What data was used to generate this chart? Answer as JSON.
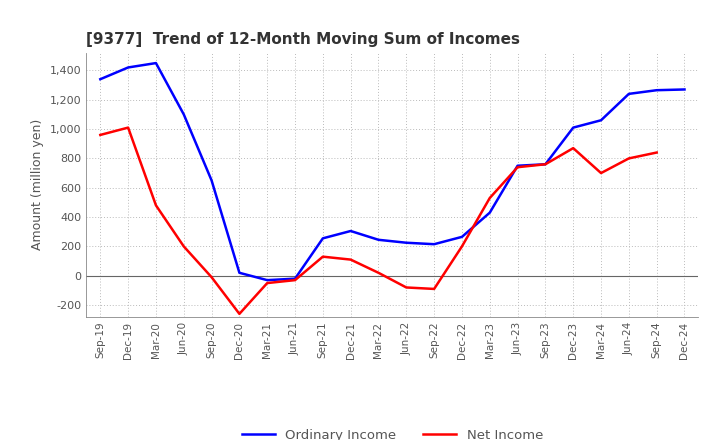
{
  "title": "[9377]  Trend of 12-Month Moving Sum of Incomes",
  "ylabel": "Amount (million yen)",
  "x_labels": [
    "Sep-19",
    "Dec-19",
    "Mar-20",
    "Jun-20",
    "Sep-20",
    "Dec-20",
    "Mar-21",
    "Jun-21",
    "Sep-21",
    "Dec-21",
    "Mar-22",
    "Jun-22",
    "Sep-22",
    "Dec-22",
    "Mar-23",
    "Jun-23",
    "Sep-23",
    "Dec-23",
    "Mar-24",
    "Jun-24",
    "Sep-24",
    "Dec-24"
  ],
  "ordinary_income": [
    1340,
    1420,
    1450,
    1100,
    650,
    20,
    -30,
    -20,
    255,
    305,
    245,
    225,
    215,
    265,
    430,
    750,
    760,
    1010,
    1060,
    1240,
    1265,
    1270
  ],
  "net_income": [
    960,
    1010,
    480,
    200,
    -10,
    -260,
    -50,
    -30,
    130,
    110,
    20,
    -80,
    -90,
    200,
    530,
    740,
    760,
    870,
    700,
    800,
    840,
    null
  ],
  "ordinary_color": "#0000FF",
  "net_color": "#FF0000",
  "ylim": [
    -280,
    1520
  ],
  "yticks": [
    -200,
    0,
    200,
    400,
    600,
    800,
    1000,
    1200,
    1400
  ],
  "bg_color": "#FFFFFF",
  "grid_color": "#BBBBBB",
  "line_width": 1.8,
  "title_color": "#333333",
  "tick_color": "#555555"
}
